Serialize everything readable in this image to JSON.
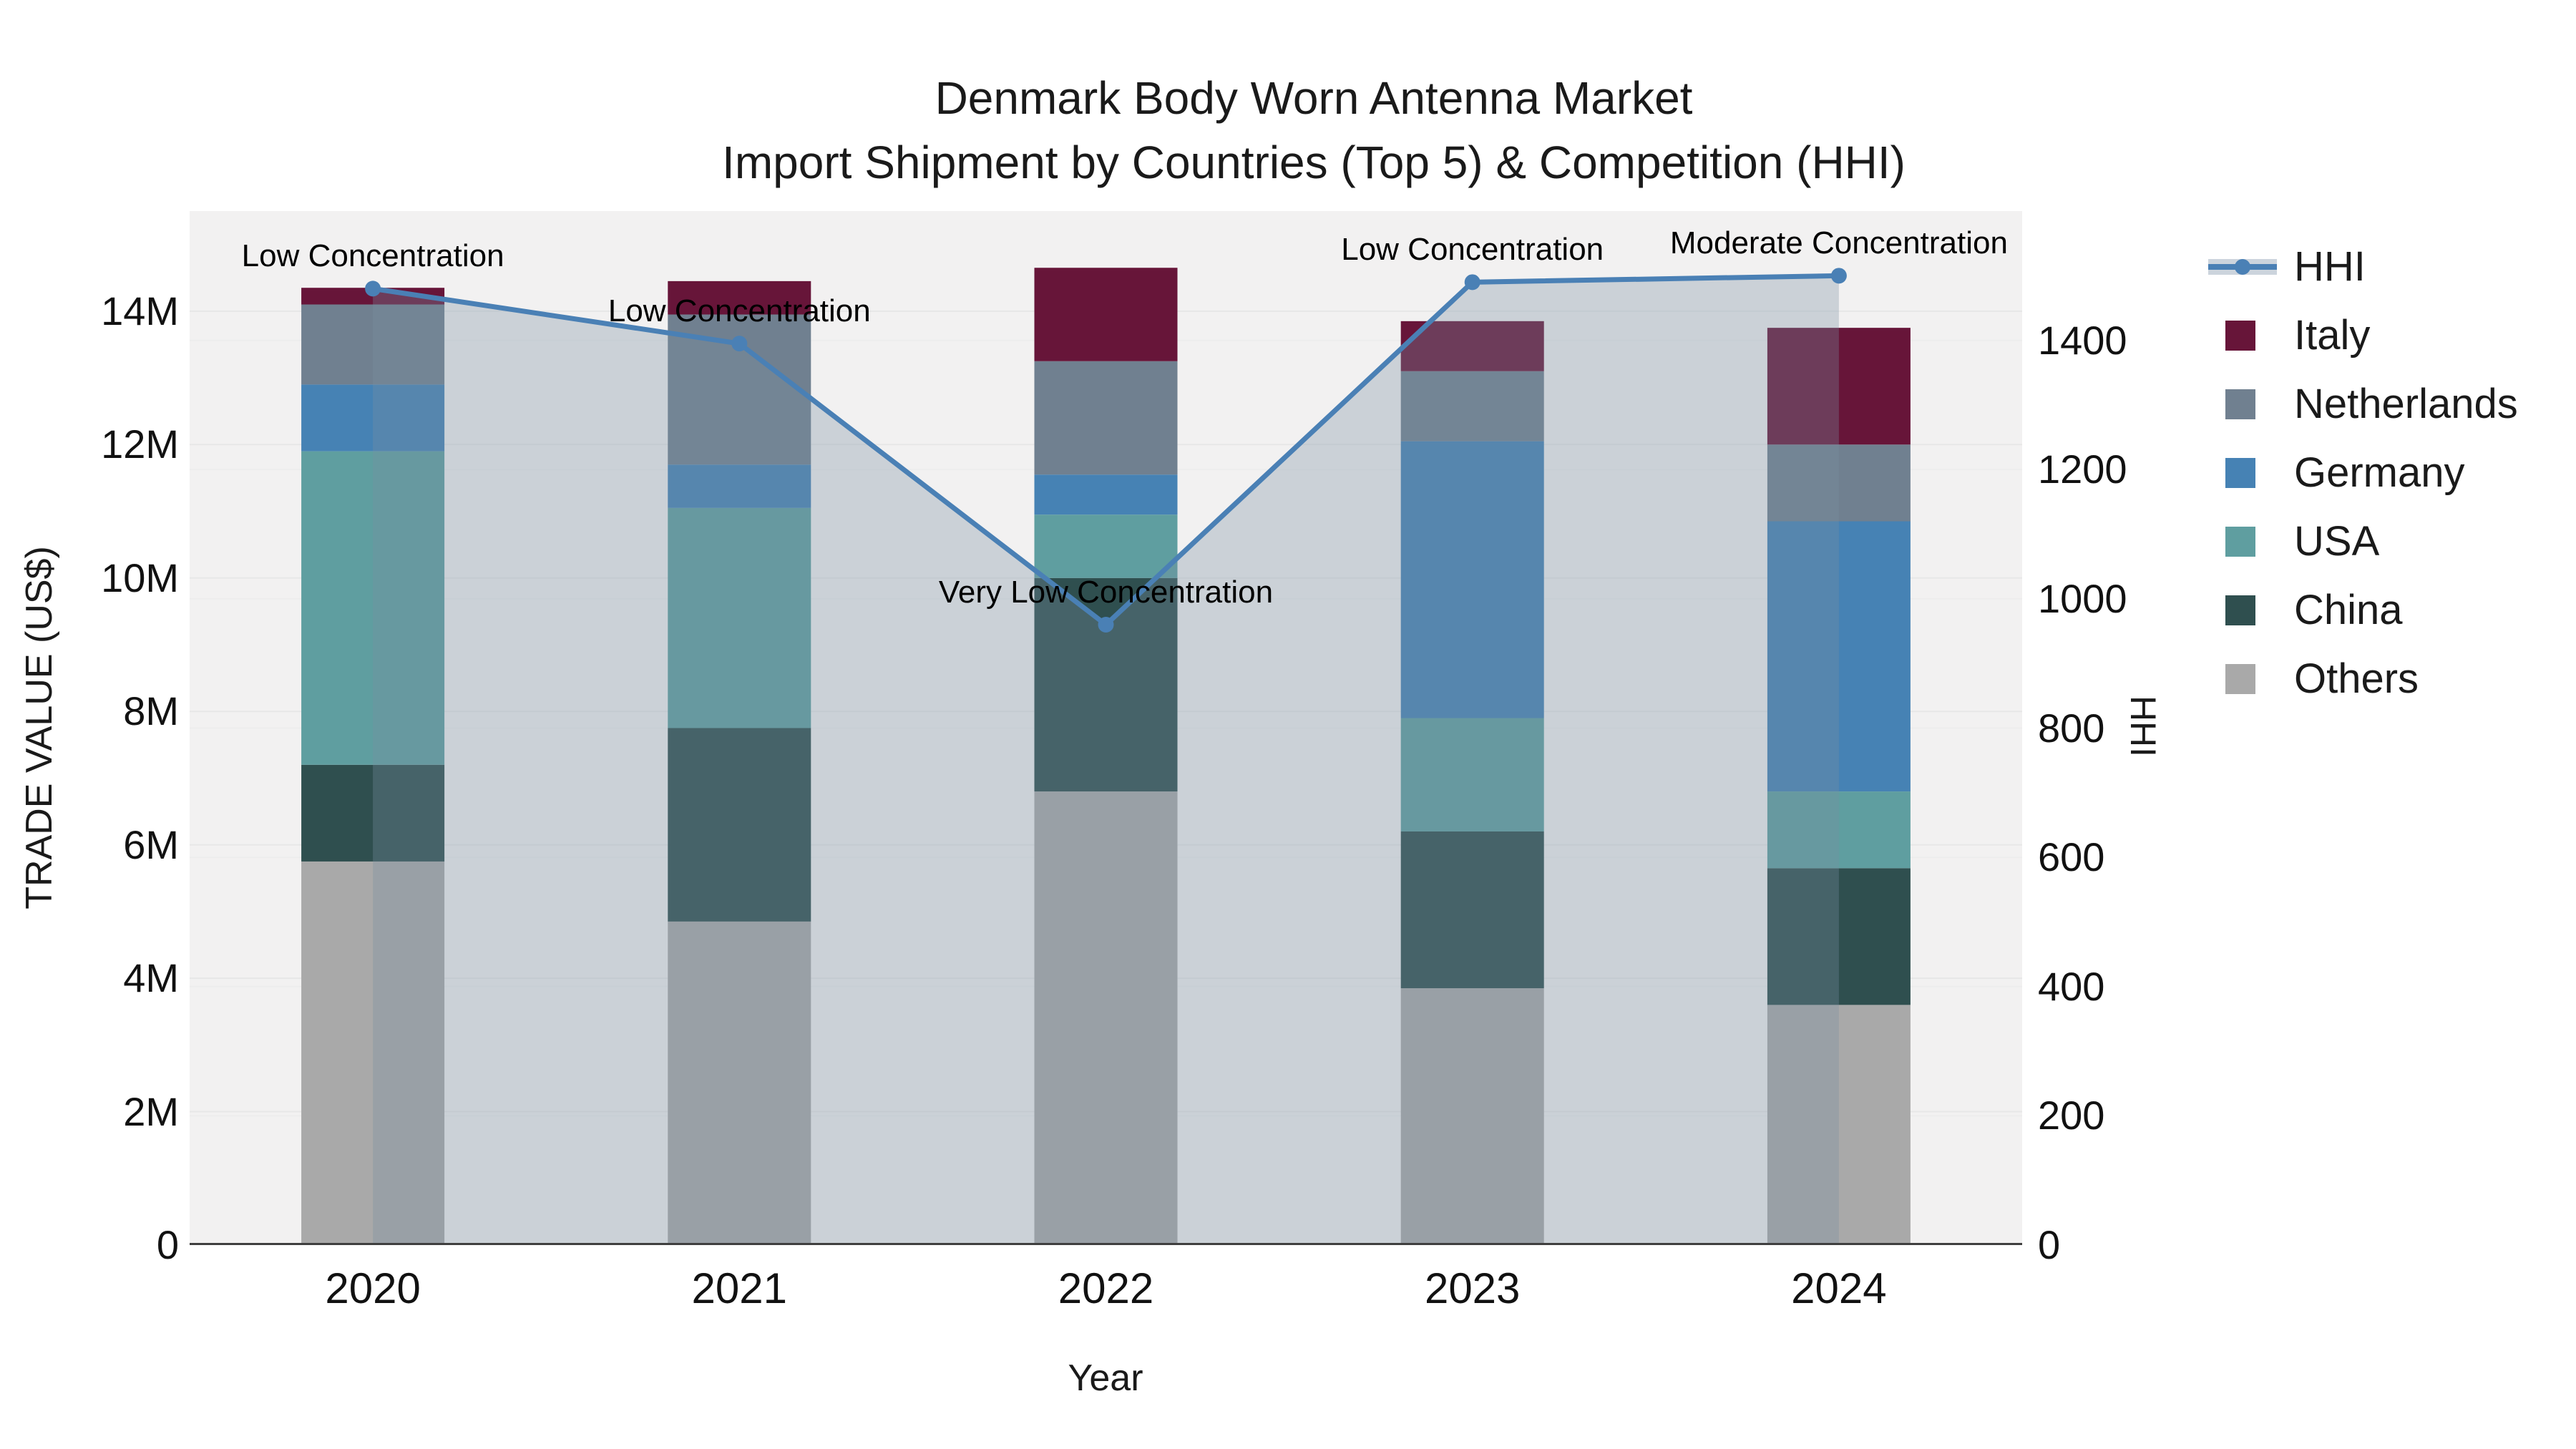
{
  "title": {
    "line1": "Denmark Body Worn Antenna Market",
    "line2": "Import Shipment by Countries (Top 5) & Competition (HHI)"
  },
  "chart_data": {
    "type": "bar+line",
    "subtype": "stacked bars (left axis, US$) with HHI line (right axis)",
    "categories": [
      "2020",
      "2021",
      "2022",
      "2023",
      "2024"
    ],
    "value_unit": "US$ millions",
    "series": [
      {
        "name": "Others",
        "values": [
          5.75,
          4.85,
          6.8,
          3.85,
          3.6
        ]
      },
      {
        "name": "China",
        "values": [
          1.45,
          2.9,
          3.2,
          2.35,
          2.05
        ]
      },
      {
        "name": "USA",
        "values": [
          4.7,
          3.3,
          0.95,
          1.7,
          1.15
        ]
      },
      {
        "name": "Germany",
        "values": [
          1.0,
          0.65,
          0.6,
          4.15,
          4.05
        ]
      },
      {
        "name": "Netherlands",
        "values": [
          1.2,
          2.25,
          1.7,
          1.05,
          1.15
        ]
      },
      {
        "name": "Italy",
        "values": [
          0.25,
          0.5,
          1.4,
          0.75,
          1.75
        ]
      }
    ],
    "bar_totals": [
      14.35,
      14.45,
      14.65,
      13.85,
      13.75
    ],
    "line_series": {
      "name": "HHI",
      "values": [
        1480,
        1395,
        960,
        1490,
        1500
      ],
      "axis": "right",
      "fill": "tozeroy"
    },
    "annotations": [
      "Low Concentration",
      "Low Concentration",
      "Very Low Concentration",
      "Low Concentration",
      "Moderate Concentration"
    ],
    "xlabel": "Year",
    "ylabel_left": "TRADE VALUE (US$)",
    "ylabel_right": "HHI",
    "axes": {
      "left": {
        "max": 15.5,
        "ticks": [
          {
            "value": 0,
            "label": "0"
          },
          {
            "value": 2,
            "label": "2M"
          },
          {
            "value": 4,
            "label": "4M"
          },
          {
            "value": 6,
            "label": "6M"
          },
          {
            "value": 8,
            "label": "8M"
          },
          {
            "value": 10,
            "label": "10M"
          },
          {
            "value": 12,
            "label": "12M"
          },
          {
            "value": 14,
            "label": "14M"
          }
        ]
      },
      "right": {
        "max": 1600,
        "ticks": [
          {
            "value": 0,
            "label": "0"
          },
          {
            "value": 200,
            "label": "200"
          },
          {
            "value": 400,
            "label": "400"
          },
          {
            "value": 600,
            "label": "600"
          },
          {
            "value": 800,
            "label": "800"
          },
          {
            "value": 1000,
            "label": "1000"
          },
          {
            "value": 1200,
            "label": "1200"
          },
          {
            "value": 1400,
            "label": "1400"
          }
        ]
      }
    },
    "grid": true,
    "legend_position": "right"
  },
  "legend": {
    "items": [
      {
        "label": "HHI",
        "type": "line"
      },
      {
        "label": "Italy",
        "type": "swatch"
      },
      {
        "label": "Netherlands",
        "type": "swatch"
      },
      {
        "label": "Germany",
        "type": "swatch"
      },
      {
        "label": "USA",
        "type": "swatch"
      },
      {
        "label": "China",
        "type": "swatch"
      },
      {
        "label": "Others",
        "type": "swatch"
      }
    ]
  },
  "colors": {
    "series": {
      "Others": "#a9a9a9",
      "China": "#2f4f4f",
      "USA": "#5f9ea0",
      "Germany": "#4682b4",
      "Netherlands": "#708090",
      "Italy": "#671539"
    },
    "hhi_line": "#4a80b5",
    "hhi_fill": "rgba(120,142,162,0.32)",
    "legend_fill_swatch": "#ccd4dd",
    "plot_bg": "#f2f1f1",
    "grid_left": "#e7e7e7",
    "grid_right": "#ededed",
    "axis_line": "#3f3f3f",
    "text": "#1a1a1a"
  }
}
